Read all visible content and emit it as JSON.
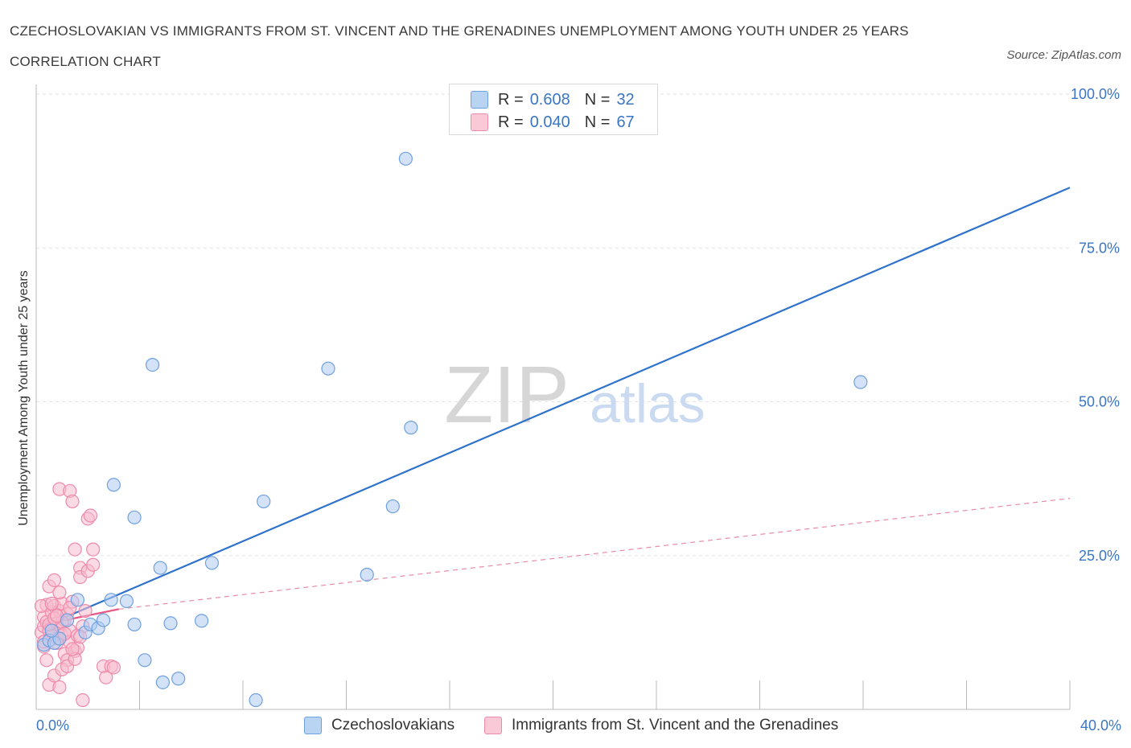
{
  "chart_data": {
    "type": "scatter",
    "title": "CZECHOSLOVAKIAN VS IMMIGRANTS FROM ST. VINCENT AND THE GRENADINES UNEMPLOYMENT AMONG YOUTH UNDER 25 YEARS CORRELATION CHART",
    "source": "Source: ZipAtlas.com",
    "xlabel": "",
    "ylabel": "Unemployment Among Youth under 25 years",
    "xlim": [
      0,
      40
    ],
    "ylim": [
      0,
      100
    ],
    "x_tick_labels": [
      "0.0%",
      "40.0%"
    ],
    "y_tick_labels": [
      "100.0%",
      "75.0%",
      "50.0%",
      "25.0%"
    ],
    "y_ticks": [
      100,
      75,
      50,
      25
    ],
    "watermark": "ZIPatlas",
    "legend": {
      "rows": [
        {
          "r_label": "R =",
          "r_value": "0.608",
          "n_label": "N =",
          "n_value": "32",
          "color": "#a9c8f0"
        },
        {
          "r_label": "R =",
          "r_value": "0.040",
          "n_label": "N =",
          "n_value": "67",
          "color": "#f6b6c8"
        }
      ]
    },
    "series": [
      {
        "name": "Czechoslovakians",
        "color": "#6fa0e0",
        "fill": "#aecbf0",
        "trend": {
          "x": [
            0.3,
            40
          ],
          "y": [
            13.5,
            84.8
          ],
          "color": "#2f72cc",
          "style": "solid"
        },
        "points": [
          [
            0.3,
            10.5
          ],
          [
            0.5,
            11.2
          ],
          [
            0.7,
            10.8
          ],
          [
            0.9,
            11.5
          ],
          [
            1.2,
            14.5
          ],
          [
            1.6,
            17.8
          ],
          [
            1.9,
            12.5
          ],
          [
            2.1,
            13.8
          ],
          [
            2.4,
            13.2
          ],
          [
            2.6,
            14.5
          ],
          [
            3.0,
            36.5
          ],
          [
            2.9,
            17.8
          ],
          [
            3.5,
            17.6
          ],
          [
            3.8,
            13.8
          ],
          [
            3.8,
            31.2
          ],
          [
            4.2,
            8.0
          ],
          [
            4.5,
            56.0
          ],
          [
            4.8,
            23.0
          ],
          [
            4.9,
            4.4
          ],
          [
            5.2,
            14.0
          ],
          [
            5.5,
            5.0
          ],
          [
            6.4,
            14.4
          ],
          [
            6.8,
            23.8
          ],
          [
            8.5,
            1.5
          ],
          [
            8.8,
            33.8
          ],
          [
            11.3,
            55.4
          ],
          [
            12.8,
            21.9
          ],
          [
            13.8,
            33.0
          ],
          [
            14.3,
            89.5
          ],
          [
            14.5,
            45.8
          ],
          [
            31.9,
            53.2
          ],
          [
            0.6,
            12.8
          ]
        ]
      },
      {
        "name": "Immigrants from St. Vincent and the Grenadines",
        "color": "#f08aaa",
        "fill": "#f6bccd",
        "trend": {
          "x": [
            0.3,
            3.2
          ],
          "y": [
            13.8,
            16.3
          ],
          "color": "#e85585",
          "style": "solid"
        },
        "trend_extended": {
          "x": [
            3.2,
            40
          ],
          "y": [
            16.3,
            34.3
          ],
          "color": "#e88aa6",
          "style": "dashed"
        },
        "points": [
          [
            0.2,
            12.5
          ],
          [
            0.3,
            13.5
          ],
          [
            0.3,
            15.0
          ],
          [
            0.4,
            14.2
          ],
          [
            0.4,
            17.0
          ],
          [
            0.5,
            12.8
          ],
          [
            0.5,
            20.0
          ],
          [
            0.6,
            15.8
          ],
          [
            0.6,
            13.0
          ],
          [
            0.7,
            21.0
          ],
          [
            0.7,
            16.8
          ],
          [
            0.8,
            14.0
          ],
          [
            0.8,
            11.5
          ],
          [
            0.9,
            13.2
          ],
          [
            0.9,
            16.0
          ],
          [
            1.0,
            12.0
          ],
          [
            1.0,
            17.2
          ],
          [
            1.1,
            9.0
          ],
          [
            1.1,
            14.5
          ],
          [
            1.2,
            15.5
          ],
          [
            1.2,
            8.0
          ],
          [
            1.3,
            12.8
          ],
          [
            1.3,
            11.0
          ],
          [
            1.4,
            17.5
          ],
          [
            1.5,
            26.0
          ],
          [
            1.5,
            9.5
          ],
          [
            1.6,
            10.0
          ],
          [
            1.7,
            23.0
          ],
          [
            1.7,
            21.5
          ],
          [
            1.8,
            13.5
          ],
          [
            1.9,
            16.0
          ],
          [
            2.0,
            22.5
          ],
          [
            2.0,
            31.0
          ],
          [
            2.1,
            31.5
          ],
          [
            2.2,
            23.5
          ],
          [
            2.2,
            26.0
          ],
          [
            0.9,
            35.8
          ],
          [
            1.3,
            35.5
          ],
          [
            1.4,
            33.8
          ],
          [
            0.5,
            4.0
          ],
          [
            0.7,
            5.5
          ],
          [
            0.9,
            3.6
          ],
          [
            1.0,
            6.5
          ],
          [
            1.2,
            7.0
          ],
          [
            1.5,
            8.2
          ],
          [
            1.8,
            1.5
          ],
          [
            2.6,
            7.0
          ],
          [
            2.7,
            5.2
          ],
          [
            2.9,
            7.0
          ],
          [
            3.0,
            6.8
          ],
          [
            0.3,
            10.2
          ],
          [
            0.4,
            8.0
          ],
          [
            0.6,
            12.0
          ],
          [
            0.8,
            10.8
          ],
          [
            1.0,
            14.2
          ],
          [
            1.1,
            12.3
          ],
          [
            1.3,
            16.5
          ],
          [
            1.4,
            9.8
          ],
          [
            1.6,
            12.0
          ],
          [
            1.7,
            11.8
          ],
          [
            0.2,
            16.8
          ],
          [
            0.3,
            11.0
          ],
          [
            0.5,
            13.8
          ],
          [
            0.6,
            17.2
          ],
          [
            0.7,
            14.8
          ],
          [
            0.8,
            15.2
          ],
          [
            0.9,
            19.0
          ]
        ]
      }
    ]
  },
  "bottom_legend": [
    {
      "label": "Czechoslovakians",
      "color": "#a9c8f0",
      "border": "#6fa0e0"
    },
    {
      "label": "Immigrants from St. Vincent and the Grenadines",
      "color": "#f6bccd",
      "border": "#f08aaa"
    }
  ]
}
